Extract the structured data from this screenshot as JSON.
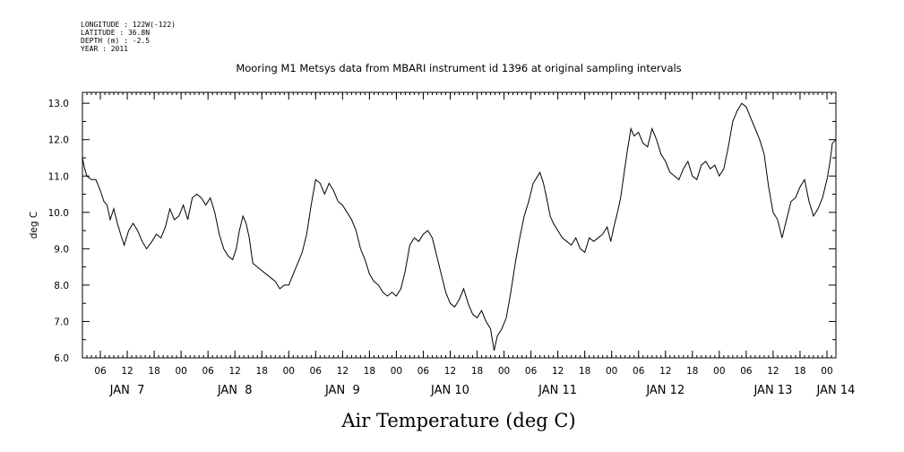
{
  "meta_lines": [
    "LONGITUDE : 122W(-122)",
    "LATITUDE : 36.8N",
    "DEPTH (m) : -2.5",
    "YEAR : 2011"
  ],
  "chart_data": {
    "type": "line",
    "title": "Mooring M1 Metsys data from MBARI instrument id 1396 at original sampling intervals",
    "xlabel": "Air Temperature (deg C)",
    "ylabel": "deg C",
    "ylim": [
      6.0,
      13.3
    ],
    "xlim": [
      2.0,
      170.0
    ],
    "x_units": "hours since 2011-01-07 00:00",
    "y_ticks": [
      6.0,
      7.0,
      8.0,
      9.0,
      10.0,
      11.0,
      12.0,
      13.0
    ],
    "y_tick_labels": [
      "6.0",
      "7.0",
      "8.0",
      "9.0",
      "10.0",
      "11.0",
      "12.0",
      "13.0"
    ],
    "hour_ticks": [
      {
        "h": 6,
        "label": "06"
      },
      {
        "h": 12,
        "label": "12"
      },
      {
        "h": 18,
        "label": "18"
      },
      {
        "h": 24,
        "label": "00"
      },
      {
        "h": 30,
        "label": "06"
      },
      {
        "h": 36,
        "label": "12"
      },
      {
        "h": 42,
        "label": "18"
      },
      {
        "h": 48,
        "label": "00"
      },
      {
        "h": 54,
        "label": "06"
      },
      {
        "h": 60,
        "label": "12"
      },
      {
        "h": 66,
        "label": "18"
      },
      {
        "h": 72,
        "label": "00"
      },
      {
        "h": 78,
        "label": "06"
      },
      {
        "h": 84,
        "label": "12"
      },
      {
        "h": 90,
        "label": "18"
      },
      {
        "h": 96,
        "label": "00"
      },
      {
        "h": 102,
        "label": "06"
      },
      {
        "h": 108,
        "label": "12"
      },
      {
        "h": 114,
        "label": "18"
      },
      {
        "h": 120,
        "label": "00"
      },
      {
        "h": 126,
        "label": "06"
      },
      {
        "h": 132,
        "label": "12"
      },
      {
        "h": 138,
        "label": "18"
      },
      {
        "h": 144,
        "label": "00"
      },
      {
        "h": 150,
        "label": "06"
      },
      {
        "h": 156,
        "label": "12"
      },
      {
        "h": 162,
        "label": "18"
      },
      {
        "h": 168,
        "label": "00"
      }
    ],
    "day_labels": [
      {
        "h": 12,
        "label": "JAN  7"
      },
      {
        "h": 36,
        "label": "JAN  8"
      },
      {
        "h": 60,
        "label": "JAN  9"
      },
      {
        "h": 84,
        "label": "JAN 10"
      },
      {
        "h": 108,
        "label": "JAN 11"
      },
      {
        "h": 132,
        "label": "JAN 12"
      },
      {
        "h": 156,
        "label": "JAN 13"
      },
      {
        "h": 170,
        "label": "JAN 14"
      }
    ],
    "series": [
      {
        "color": "#000000",
        "points": [
          [
            2.0,
            11.5
          ],
          [
            2.5,
            11.2
          ],
          [
            3.0,
            11.0
          ],
          [
            4.0,
            10.9
          ],
          [
            5.0,
            10.9
          ],
          [
            6.0,
            10.6
          ],
          [
            6.8,
            10.3
          ],
          [
            7.5,
            10.2
          ],
          [
            8.2,
            9.8
          ],
          [
            9.0,
            10.1
          ],
          [
            9.8,
            9.7
          ],
          [
            10.5,
            9.4
          ],
          [
            11.3,
            9.1
          ],
          [
            12.3,
            9.5
          ],
          [
            13.3,
            9.7
          ],
          [
            14.3,
            9.5
          ],
          [
            15.3,
            9.2
          ],
          [
            16.3,
            9.0
          ],
          [
            17.5,
            9.2
          ],
          [
            18.5,
            9.4
          ],
          [
            19.5,
            9.3
          ],
          [
            20.5,
            9.6
          ],
          [
            21.5,
            10.1
          ],
          [
            22.5,
            9.8
          ],
          [
            23.5,
            9.9
          ],
          [
            24.5,
            10.2
          ],
          [
            25.5,
            9.8
          ],
          [
            26.5,
            10.4
          ],
          [
            27.5,
            10.5
          ],
          [
            28.5,
            10.4
          ],
          [
            29.5,
            10.2
          ],
          [
            30.5,
            10.4
          ],
          [
            31.5,
            10.0
          ],
          [
            32.5,
            9.4
          ],
          [
            33.5,
            9.0
          ],
          [
            34.5,
            8.8
          ],
          [
            35.5,
            8.7
          ],
          [
            36.3,
            9.0
          ],
          [
            37.0,
            9.5
          ],
          [
            37.8,
            9.9
          ],
          [
            38.5,
            9.7
          ],
          [
            39.2,
            9.3
          ],
          [
            40.0,
            8.6
          ],
          [
            41.0,
            8.5
          ],
          [
            42.0,
            8.4
          ],
          [
            43.0,
            8.3
          ],
          [
            44.0,
            8.2
          ],
          [
            45.0,
            8.1
          ],
          [
            46.0,
            7.9
          ],
          [
            47.0,
            8.0
          ],
          [
            48.0,
            8.0
          ],
          [
            49.0,
            8.3
          ],
          [
            50.0,
            8.6
          ],
          [
            51.0,
            8.9
          ],
          [
            52.0,
            9.4
          ],
          [
            53.0,
            10.2
          ],
          [
            54.0,
            10.9
          ],
          [
            55.0,
            10.8
          ],
          [
            56.0,
            10.5
          ],
          [
            57.0,
            10.8
          ],
          [
            58.0,
            10.6
          ],
          [
            59.0,
            10.3
          ],
          [
            60.0,
            10.2
          ],
          [
            61.0,
            10.0
          ],
          [
            62.0,
            9.8
          ],
          [
            63.0,
            9.5
          ],
          [
            64.0,
            9.0
          ],
          [
            65.0,
            8.7
          ],
          [
            66.0,
            8.3
          ],
          [
            67.0,
            8.1
          ],
          [
            68.0,
            8.0
          ],
          [
            69.0,
            7.8
          ],
          [
            70.0,
            7.7
          ],
          [
            71.0,
            7.8
          ],
          [
            72.0,
            7.7
          ],
          [
            73.0,
            7.9
          ],
          [
            74.0,
            8.4
          ],
          [
            75.0,
            9.1
          ],
          [
            76.0,
            9.3
          ],
          [
            77.0,
            9.2
          ],
          [
            78.0,
            9.4
          ],
          [
            79.0,
            9.5
          ],
          [
            80.0,
            9.3
          ],
          [
            81.0,
            8.8
          ],
          [
            82.0,
            8.3
          ],
          [
            83.0,
            7.8
          ],
          [
            84.0,
            7.5
          ],
          [
            85.0,
            7.4
          ],
          [
            86.0,
            7.6
          ],
          [
            87.0,
            7.9
          ],
          [
            88.0,
            7.5
          ],
          [
            89.0,
            7.2
          ],
          [
            90.0,
            7.1
          ],
          [
            91.0,
            7.3
          ],
          [
            92.0,
            7.0
          ],
          [
            93.0,
            6.8
          ],
          [
            93.8,
            6.2
          ],
          [
            94.5,
            6.6
          ],
          [
            95.5,
            6.8
          ],
          [
            96.5,
            7.1
          ],
          [
            97.5,
            7.8
          ],
          [
            98.5,
            8.6
          ],
          [
            99.5,
            9.3
          ],
          [
            100.5,
            9.9
          ],
          [
            101.5,
            10.3
          ],
          [
            102.5,
            10.8
          ],
          [
            103.5,
            11.0
          ],
          [
            104.0,
            11.1
          ],
          [
            104.8,
            10.8
          ],
          [
            105.5,
            10.4
          ],
          [
            106.3,
            9.9
          ],
          [
            107.0,
            9.7
          ],
          [
            108.0,
            9.5
          ],
          [
            109.0,
            9.3
          ],
          [
            110.0,
            9.2
          ],
          [
            111.0,
            9.1
          ],
          [
            112.0,
            9.3
          ],
          [
            113.0,
            9.0
          ],
          [
            114.0,
            8.9
          ],
          [
            115.0,
            9.3
          ],
          [
            116.0,
            9.2
          ],
          [
            117.0,
            9.3
          ],
          [
            118.0,
            9.4
          ],
          [
            119.0,
            9.6
          ],
          [
            119.8,
            9.2
          ],
          [
            120.5,
            9.6
          ],
          [
            121.3,
            10.0
          ],
          [
            122.0,
            10.4
          ],
          [
            122.8,
            11.1
          ],
          [
            123.5,
            11.7
          ],
          [
            124.3,
            12.3
          ],
          [
            125.0,
            12.1
          ],
          [
            126.0,
            12.2
          ],
          [
            127.0,
            11.9
          ],
          [
            128.0,
            11.8
          ],
          [
            129.0,
            12.3
          ],
          [
            130.0,
            12.0
          ],
          [
            131.0,
            11.6
          ],
          [
            132.0,
            11.4
          ],
          [
            133.0,
            11.1
          ],
          [
            134.0,
            11.0
          ],
          [
            135.0,
            10.9
          ],
          [
            136.0,
            11.2
          ],
          [
            137.0,
            11.4
          ],
          [
            138.0,
            11.0
          ],
          [
            139.0,
            10.9
          ],
          [
            140.0,
            11.3
          ],
          [
            141.0,
            11.4
          ],
          [
            142.0,
            11.2
          ],
          [
            143.0,
            11.3
          ],
          [
            144.0,
            11.0
          ],
          [
            145.0,
            11.2
          ],
          [
            146.0,
            11.8
          ],
          [
            147.0,
            12.5
          ],
          [
            148.0,
            12.8
          ],
          [
            149.0,
            13.0
          ],
          [
            150.0,
            12.9
          ],
          [
            151.0,
            12.6
          ],
          [
            152.0,
            12.3
          ],
          [
            153.0,
            12.0
          ],
          [
            154.0,
            11.6
          ],
          [
            155.0,
            10.7
          ],
          [
            156.0,
            10.0
          ],
          [
            157.0,
            9.8
          ],
          [
            158.0,
            9.3
          ],
          [
            159.0,
            9.8
          ],
          [
            160.0,
            10.3
          ],
          [
            161.0,
            10.4
          ],
          [
            162.0,
            10.7
          ],
          [
            163.0,
            10.9
          ],
          [
            164.0,
            10.3
          ],
          [
            165.0,
            9.9
          ],
          [
            166.0,
            10.1
          ],
          [
            167.0,
            10.4
          ],
          [
            168.0,
            10.9
          ],
          [
            168.7,
            11.4
          ],
          [
            169.2,
            11.9
          ],
          [
            170.0,
            12.0
          ]
        ]
      }
    ]
  }
}
